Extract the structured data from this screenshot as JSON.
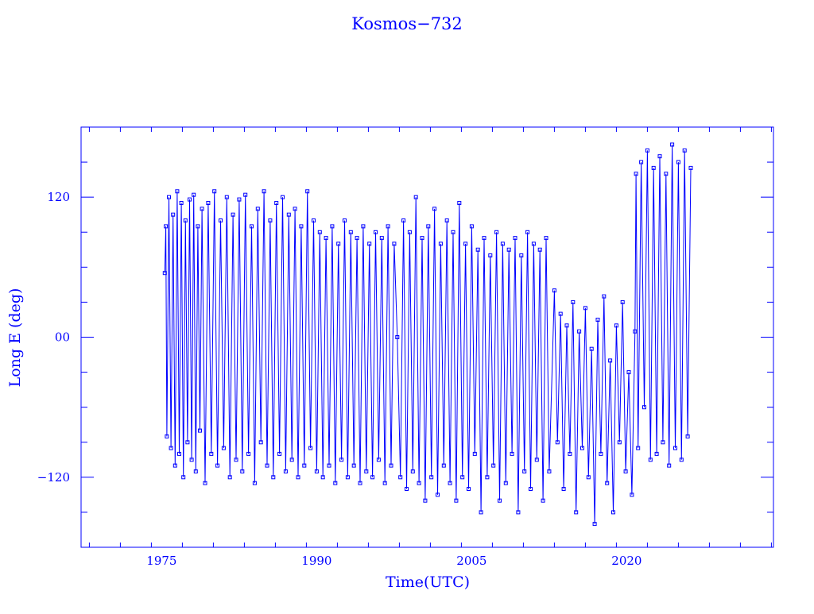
{
  "chart_data": {
    "type": "line",
    "title": "Kosmos−732",
    "xlabel": "Time(UTC)",
    "ylabel": "Long E (deg)",
    "xlim": [
      1967.2,
      2034.2
    ],
    "ylim": [
      -180,
      180
    ],
    "x_ticks": [
      {
        "value": 1975,
        "label": "1975"
      },
      {
        "value": 1990,
        "label": "1990"
      },
      {
        "value": 2005,
        "label": "2005"
      },
      {
        "value": 2020,
        "label": "2020"
      }
    ],
    "y_ticks": [
      {
        "value": 120,
        "label": "120"
      },
      {
        "value": 0,
        "label": "00"
      },
      {
        "value": -120,
        "label": "−120"
      }
    ],
    "x_minor_step": 3,
    "y_minor_step": 30,
    "grid": false,
    "marker": "square",
    "color": "#0000ff",
    "series": [
      {
        "values": [
          [
            1975.3,
            55
          ],
          [
            1975.4,
            95
          ],
          [
            1975.5,
            -85
          ],
          [
            1975.7,
            120
          ],
          [
            1975.9,
            -95
          ],
          [
            1976.1,
            105
          ],
          [
            1976.3,
            -110
          ],
          [
            1976.5,
            125
          ],
          [
            1976.7,
            -100
          ],
          [
            1976.9,
            115
          ],
          [
            1977.1,
            -120
          ],
          [
            1977.3,
            100
          ],
          [
            1977.5,
            -90
          ],
          [
            1977.7,
            118
          ],
          [
            1977.9,
            -105
          ],
          [
            1978.1,
            122
          ],
          [
            1978.3,
            -115
          ],
          [
            1978.5,
            95
          ],
          [
            1978.7,
            -80
          ],
          [
            1978.9,
            110
          ],
          [
            1979.2,
            -125
          ],
          [
            1979.5,
            115
          ],
          [
            1979.8,
            -100
          ],
          [
            1980.1,
            125
          ],
          [
            1980.4,
            -110
          ],
          [
            1980.7,
            100
          ],
          [
            1981.0,
            -95
          ],
          [
            1981.3,
            120
          ],
          [
            1981.6,
            -120
          ],
          [
            1981.9,
            105
          ],
          [
            1982.2,
            -105
          ],
          [
            1982.5,
            118
          ],
          [
            1982.8,
            -115
          ],
          [
            1983.1,
            122
          ],
          [
            1983.4,
            -100
          ],
          [
            1983.7,
            95
          ],
          [
            1984.0,
            -125
          ],
          [
            1984.3,
            110
          ],
          [
            1984.6,
            -90
          ],
          [
            1984.9,
            125
          ],
          [
            1985.2,
            -110
          ],
          [
            1985.5,
            100
          ],
          [
            1985.8,
            -120
          ],
          [
            1986.1,
            115
          ],
          [
            1986.4,
            -100
          ],
          [
            1986.7,
            120
          ],
          [
            1987.0,
            -115
          ],
          [
            1987.3,
            105
          ],
          [
            1987.6,
            -105
          ],
          [
            1987.9,
            110
          ],
          [
            1988.2,
            -120
          ],
          [
            1988.5,
            95
          ],
          [
            1988.8,
            -110
          ],
          [
            1989.1,
            125
          ],
          [
            1989.4,
            -95
          ],
          [
            1989.7,
            100
          ],
          [
            1990.0,
            -115
          ],
          [
            1990.3,
            90
          ],
          [
            1990.6,
            -120
          ],
          [
            1990.9,
            85
          ],
          [
            1991.2,
            -110
          ],
          [
            1991.5,
            95
          ],
          [
            1991.8,
            -125
          ],
          [
            1992.1,
            80
          ],
          [
            1992.4,
            -105
          ],
          [
            1992.7,
            100
          ],
          [
            1993.0,
            -120
          ],
          [
            1993.3,
            90
          ],
          [
            1993.6,
            -110
          ],
          [
            1993.9,
            85
          ],
          [
            1994.2,
            -125
          ],
          [
            1994.5,
            95
          ],
          [
            1994.8,
            -115
          ],
          [
            1995.1,
            80
          ],
          [
            1995.4,
            -120
          ],
          [
            1995.7,
            90
          ],
          [
            1996.0,
            -105
          ],
          [
            1996.3,
            85
          ],
          [
            1996.6,
            -125
          ],
          [
            1996.9,
            95
          ],
          [
            1997.2,
            -110
          ],
          [
            1997.5,
            80
          ],
          [
            1997.8,
            0
          ],
          [
            1998.1,
            -120
          ],
          [
            1998.4,
            100
          ],
          [
            1998.7,
            -130
          ],
          [
            1999.0,
            90
          ],
          [
            1999.3,
            -115
          ],
          [
            1999.6,
            120
          ],
          [
            1999.9,
            -125
          ],
          [
            2000.2,
            85
          ],
          [
            2000.5,
            -140
          ],
          [
            2000.8,
            95
          ],
          [
            2001.1,
            -120
          ],
          [
            2001.4,
            110
          ],
          [
            2001.7,
            -135
          ],
          [
            2002.0,
            80
          ],
          [
            2002.3,
            -110
          ],
          [
            2002.6,
            100
          ],
          [
            2002.9,
            -125
          ],
          [
            2003.2,
            90
          ],
          [
            2003.5,
            -140
          ],
          [
            2003.8,
            115
          ],
          [
            2004.1,
            -120
          ],
          [
            2004.4,
            80
          ],
          [
            2004.7,
            -130
          ],
          [
            2005.0,
            95
          ],
          [
            2005.3,
            -100
          ],
          [
            2005.6,
            75
          ],
          [
            2005.9,
            -150
          ],
          [
            2006.2,
            85
          ],
          [
            2006.5,
            -120
          ],
          [
            2006.8,
            70
          ],
          [
            2007.1,
            -110
          ],
          [
            2007.4,
            90
          ],
          [
            2007.7,
            -140
          ],
          [
            2008.0,
            80
          ],
          [
            2008.3,
            -125
          ],
          [
            2008.6,
            75
          ],
          [
            2008.9,
            -100
          ],
          [
            2009.2,
            85
          ],
          [
            2009.5,
            -150
          ],
          [
            2009.8,
            70
          ],
          [
            2010.1,
            -115
          ],
          [
            2010.4,
            90
          ],
          [
            2010.7,
            -130
          ],
          [
            2011.0,
            80
          ],
          [
            2011.3,
            -105
          ],
          [
            2011.6,
            75
          ],
          [
            2011.9,
            -140
          ],
          [
            2012.2,
            85
          ],
          [
            2012.5,
            -115
          ],
          [
            2013.0,
            40
          ],
          [
            2013.3,
            -90
          ],
          [
            2013.6,
            20
          ],
          [
            2013.9,
            -130
          ],
          [
            2014.2,
            10
          ],
          [
            2014.5,
            -100
          ],
          [
            2014.8,
            30
          ],
          [
            2015.1,
            -150
          ],
          [
            2015.4,
            5
          ],
          [
            2015.7,
            -95
          ],
          [
            2016.0,
            25
          ],
          [
            2016.3,
            -120
          ],
          [
            2016.6,
            -10
          ],
          [
            2016.9,
            -160
          ],
          [
            2017.2,
            15
          ],
          [
            2017.5,
            -100
          ],
          [
            2017.8,
            35
          ],
          [
            2018.1,
            -125
          ],
          [
            2018.4,
            -20
          ],
          [
            2018.7,
            -150
          ],
          [
            2019.0,
            10
          ],
          [
            2019.3,
            -90
          ],
          [
            2019.6,
            30
          ],
          [
            2019.9,
            -115
          ],
          [
            2020.2,
            -30
          ],
          [
            2020.5,
            -135
          ],
          [
            2020.8,
            5
          ],
          [
            2020.9,
            140
          ],
          [
            2021.1,
            -95
          ],
          [
            2021.4,
            150
          ],
          [
            2021.7,
            -60
          ],
          [
            2022.0,
            160
          ],
          [
            2022.3,
            -105
          ],
          [
            2022.6,
            145
          ],
          [
            2022.9,
            -100
          ],
          [
            2023.2,
            155
          ],
          [
            2023.5,
            -90
          ],
          [
            2023.8,
            140
          ],
          [
            2024.1,
            -110
          ],
          [
            2024.4,
            165
          ],
          [
            2024.7,
            -95
          ],
          [
            2025.0,
            150
          ],
          [
            2025.3,
            -105
          ],
          [
            2025.6,
            160
          ],
          [
            2025.9,
            -85
          ],
          [
            2026.2,
            145
          ]
        ]
      }
    ]
  }
}
